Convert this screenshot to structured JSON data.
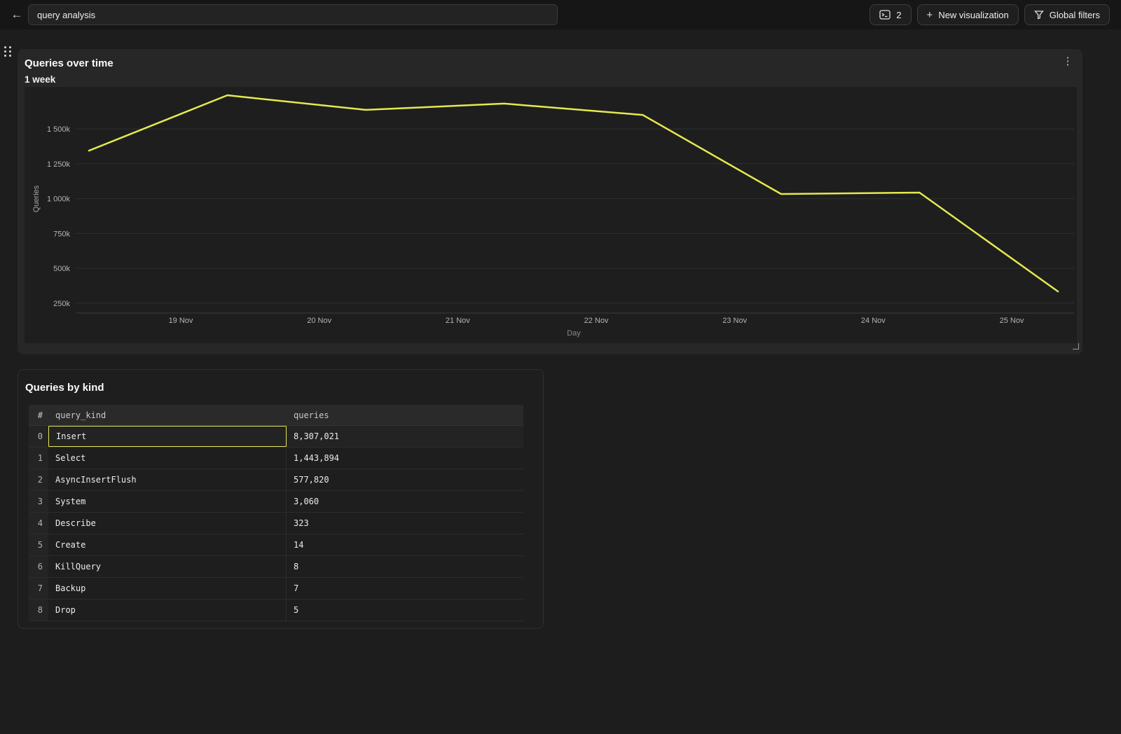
{
  "colors": {
    "accent_yellow": "#e5e94f",
    "selected_cell_border": "#e0e455",
    "card_bg": "#272727",
    "page_bg": "#1d1d1d",
    "topbar_bg": "#161616"
  },
  "topbar": {
    "back_icon": "←",
    "title_input": {
      "value": "query analysis"
    },
    "buttons": {
      "console_count": {
        "icon": "terminal-icon",
        "label": "2"
      },
      "new_visualization": {
        "icon": "plus-icon",
        "plus": "+",
        "label": "New visualization"
      },
      "global_filters": {
        "icon": "funnel-icon",
        "label": "Global filters"
      }
    }
  },
  "chart_card": {
    "title": "Queries over time",
    "subtitle": "1 week",
    "menu_icon": "kebab-menu-icon",
    "kebab_glyph": "⋮"
  },
  "chart_data": {
    "type": "line",
    "title": "Queries over time",
    "xlabel": "Day",
    "ylabel": "Queries",
    "grid": "horizontal",
    "legend": "none",
    "x_tick_labels": [
      "19 Nov",
      "20 Nov",
      "21 Nov",
      "22 Nov",
      "23 Nov",
      "24 Nov",
      "25 Nov"
    ],
    "y_tick_labels": [
      "1 500k",
      "1 250k",
      "1 000k",
      "750k",
      "500k",
      "250k"
    ],
    "y_tick_values": [
      1500000,
      1250000,
      1000000,
      750000,
      500000,
      250000
    ],
    "ylim": [
      180000,
      1800000
    ],
    "series": [
      {
        "name": "Queries",
        "color": "#e5e94f",
        "x": [
          "18 Nov",
          "19 Nov",
          "20 Nov",
          "21 Nov",
          "22 Nov",
          "23 Nov",
          "24 Nov",
          "25 Nov"
        ],
        "values": [
          1344000,
          1741000,
          1636000,
          1681000,
          1600000,
          1033000,
          1043000,
          335000
        ]
      }
    ]
  },
  "table_card": {
    "title": "Queries by kind",
    "columns": [
      "#",
      "query_kind",
      "queries"
    ],
    "rows": [
      {
        "index": "0",
        "query_kind": "Insert",
        "queries": "8,307,021",
        "selected": true
      },
      {
        "index": "1",
        "query_kind": "Select",
        "queries": "1,443,894",
        "selected": false
      },
      {
        "index": "2",
        "query_kind": "AsyncInsertFlush",
        "queries": "577,820",
        "selected": false
      },
      {
        "index": "3",
        "query_kind": "System",
        "queries": "3,060",
        "selected": false
      },
      {
        "index": "4",
        "query_kind": "Describe",
        "queries": "323",
        "selected": false
      },
      {
        "index": "5",
        "query_kind": "Create",
        "queries": "14",
        "selected": false
      },
      {
        "index": "6",
        "query_kind": "KillQuery",
        "queries": "8",
        "selected": false
      },
      {
        "index": "7",
        "query_kind": "Backup",
        "queries": "7",
        "selected": false
      },
      {
        "index": "8",
        "query_kind": "Drop",
        "queries": "5",
        "selected": false
      }
    ]
  }
}
